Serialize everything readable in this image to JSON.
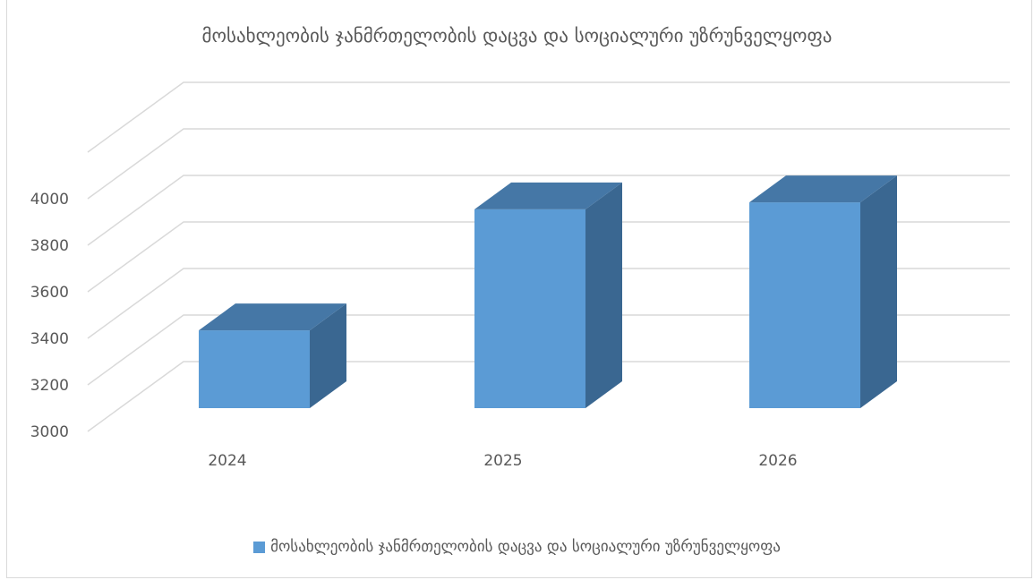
{
  "chart_data": {
    "type": "bar",
    "title": "მოსახლეობის ჯანმრთელობის დაცვა და სოციალური უზრუნველყოფა",
    "categories": [
      "2024",
      "2025",
      "2026"
    ],
    "series": [
      {
        "name": "მოსახლეობის ჯანმრთელობის დაცვა და სოციალური უზრუნველყოფა",
        "values": [
          3415,
          3935,
          3965
        ]
      }
    ],
    "yticks": [
      "3000",
      "3200",
      "3400",
      "3600",
      "3800",
      "4000"
    ],
    "ylim": [
      3000,
      4000
    ],
    "xlabel": "",
    "ylabel": "",
    "grid": true,
    "legend": "bottom",
    "is_3d": true,
    "colors": {
      "front": "#5b9bd5",
      "side": "#3a6791",
      "top": "#4577a6",
      "grid": "#d9d9d9",
      "text": "#595959"
    }
  }
}
